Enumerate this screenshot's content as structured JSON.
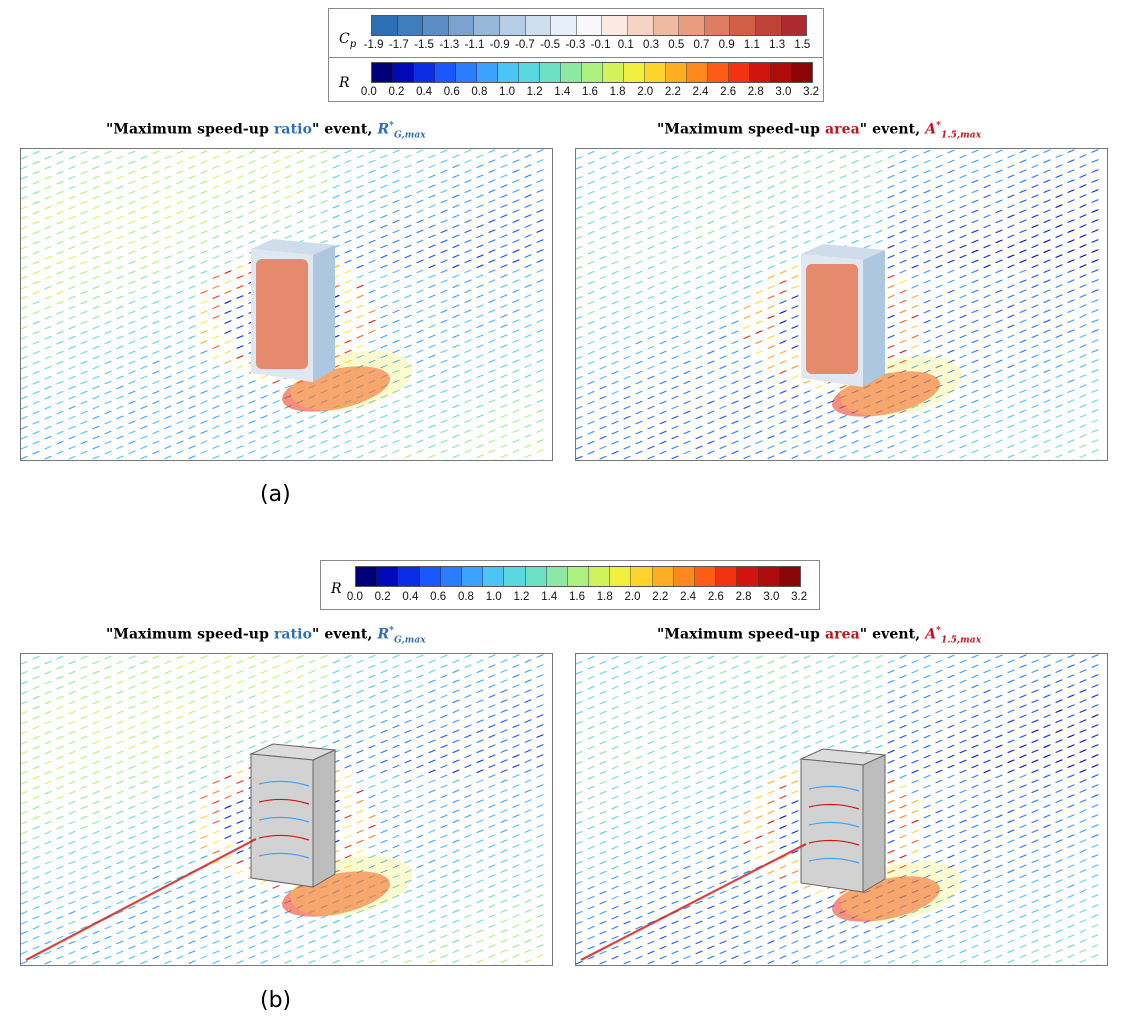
{
  "colors": {
    "cp_scale": [
      "#2c6fb2",
      "#3f7dbb",
      "#5a8ec4",
      "#7aa3cf",
      "#98b8da",
      "#b5cde6",
      "#cfdff0",
      "#e6eef8",
      "#f8f8fb",
      "#fbeae4",
      "#f6d3c3",
      "#f0b9a2",
      "#e99c80",
      "#de7d61",
      "#d16047",
      "#c0433a",
      "#ad2a30"
    ],
    "r_scale": [
      "#00007a",
      "#0008b8",
      "#0a2ee6",
      "#1a58ff",
      "#2b7dff",
      "#3ba2ff",
      "#4cc4f5",
      "#5ad8e0",
      "#6ee0c4",
      "#8ce8a2",
      "#aef07e",
      "#d2f25c",
      "#f2ee3e",
      "#ffd22c",
      "#ffae22",
      "#ff881c",
      "#ff5c16",
      "#f23212",
      "#d21410",
      "#ae0c0c",
      "#8a0606"
    ]
  },
  "colorbars": {
    "top": {
      "cp_label": "C",
      "cp_sub": "p",
      "cp_ticks": [
        "-1.9",
        "-1.7",
        "-1.5",
        "-1.3",
        "-1.1",
        "-0.9",
        "-0.7",
        "-0.5",
        "-0.3",
        "-0.1",
        "0.1",
        "0.3",
        "0.5",
        "0.7",
        "0.9",
        "1.1",
        "1.3",
        "1.5"
      ],
      "r_label": "R",
      "r_ticks": [
        "0.0",
        "0.2",
        "0.4",
        "0.6",
        "0.8",
        "1.0",
        "1.2",
        "1.4",
        "1.6",
        "1.8",
        "2.0",
        "2.2",
        "2.4",
        "2.6",
        "2.8",
        "3.0",
        "3.2"
      ]
    },
    "bottom": {
      "r_label": "R",
      "r_ticks": [
        "0.0",
        "0.2",
        "0.4",
        "0.6",
        "0.8",
        "1.0",
        "1.2",
        "1.4",
        "1.6",
        "1.8",
        "2.0",
        "2.2",
        "2.4",
        "2.6",
        "2.8",
        "3.0",
        "3.2"
      ]
    }
  },
  "titles": {
    "left": {
      "pre": "\"Maximum speed-up ",
      "word": "ratio",
      "post": "\" event, ",
      "sym": "R",
      "sup": "*",
      "sub": "G,max"
    },
    "right": {
      "pre": "\"Maximum speed-up ",
      "word": "area",
      "post": "\" event, ",
      "sym": "A",
      "sup": "*",
      "sub": "1.5,max"
    }
  },
  "panel_labels": {
    "a": "(a)",
    "b": "(b)"
  }
}
